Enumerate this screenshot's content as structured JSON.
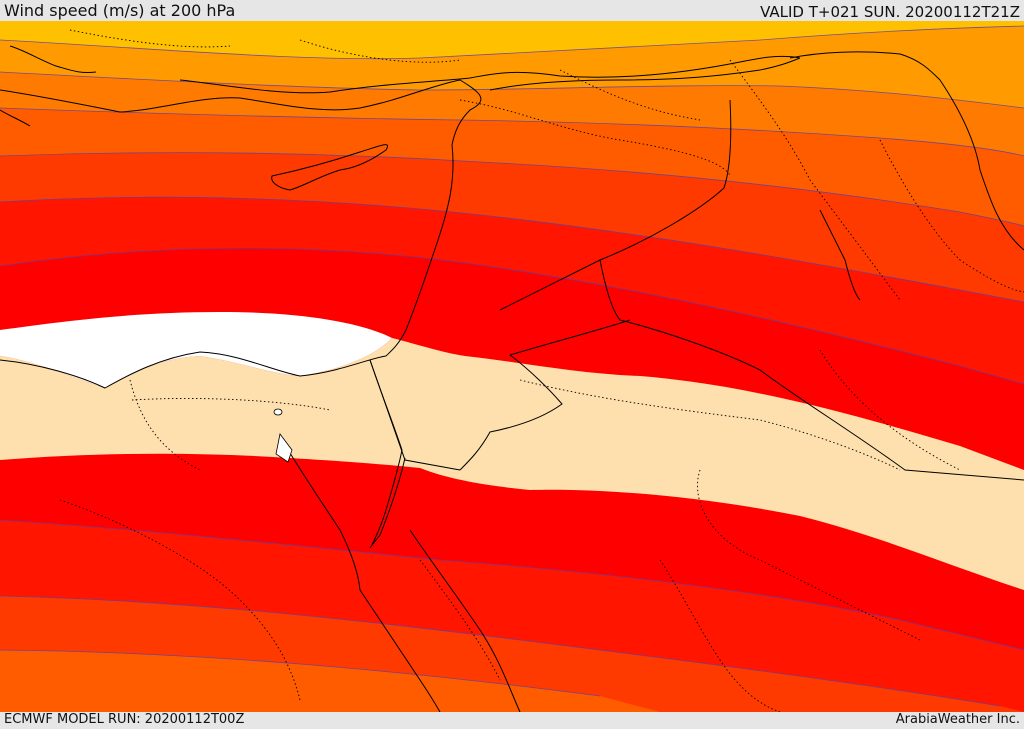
{
  "header": {
    "title": "Wind speed (m/s) at 200 hPa",
    "valid_time": "VALID T+021 SUN. 20200112T21Z"
  },
  "footer": {
    "model_run": "ECMWF MODEL RUN: 20200112T00Z",
    "credit": "ArabiaWeather Inc."
  },
  "map": {
    "field": "Wind speed",
    "units": "m/s",
    "level": "200 hPa",
    "colors": {
      "band_1": "#ffc000",
      "band_2": "#ff9b00",
      "band_3": "#ff7a00",
      "band_4": "#ff5c00",
      "band_5": "#ff3a00",
      "band_6": "#ff1500",
      "band_7": "#ff0000",
      "jet_core": "#ffffff",
      "calm_band": "#fde0ad",
      "contour": "#5e3fa8",
      "coastline": "#000000",
      "borders": "#000000"
    }
  }
}
